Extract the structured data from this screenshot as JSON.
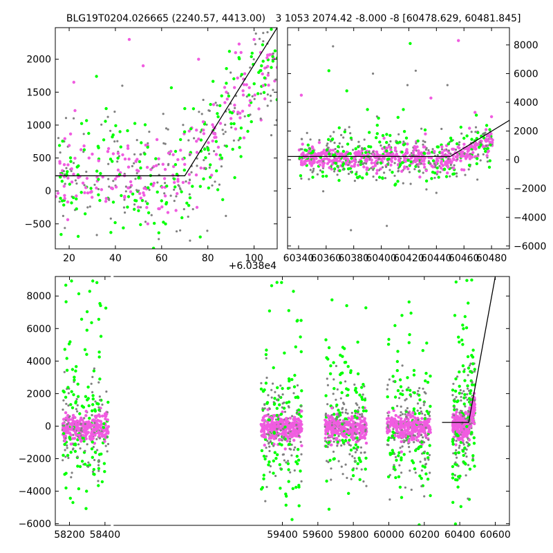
{
  "figure": {
    "title_left": "BLG19T0204.026665 (2240.57, 4413.00)",
    "title_right": "3 1053 2074.42 -8.000 -8 [60478.629, 60481.845]",
    "offset_text": "+6.038e4",
    "colors": {
      "green": "#00ff00",
      "gray": "#808080",
      "pink": "#f05ce0",
      "model": "#000000"
    }
  },
  "chart_data": [
    {
      "type": "scatter",
      "panel": "top-left",
      "xlim": [
        14,
        110
      ],
      "ylim": [
        -880,
        2480
      ],
      "xticks": [
        20,
        40,
        60,
        80,
        100
      ],
      "xtick_labels": [
        "20",
        "40",
        "60",
        "80",
        "100"
      ],
      "yticks": [
        -500,
        0,
        500,
        1000,
        1500,
        2000
      ],
      "ytick_labels": [
        "−500",
        "0",
        "500",
        "1000",
        "1500",
        "2000"
      ],
      "x_offset": 60380,
      "model_line": {
        "x": [
          14,
          70,
          110
        ],
        "y": [
          230,
          230,
          2480
        ]
      },
      "points": [
        {
          "x": 16,
          "y": 420,
          "c": "pink"
        },
        {
          "x": 18,
          "y": 250,
          "c": "gray"
        },
        {
          "x": 20,
          "y": 690,
          "c": "pink"
        },
        {
          "x": 22,
          "y": 1650,
          "c": "pink"
        },
        {
          "x": 24,
          "y": 380,
          "c": "green"
        },
        {
          "x": 26,
          "y": 120,
          "c": "pink"
        },
        {
          "x": 28,
          "y": -250,
          "c": "gray"
        },
        {
          "x": 30,
          "y": 560,
          "c": "pink"
        },
        {
          "x": 32,
          "y": 300,
          "c": "green"
        },
        {
          "x": 34,
          "y": 20,
          "c": "pink"
        },
        {
          "x": 36,
          "y": 1250,
          "c": "green"
        },
        {
          "x": 38,
          "y": -420,
          "c": "gray"
        },
        {
          "x": 40,
          "y": 180,
          "c": "pink"
        },
        {
          "x": 42,
          "y": 900,
          "c": "green"
        },
        {
          "x": 44,
          "y": -100,
          "c": "pink"
        },
        {
          "x": 46,
          "y": 2300,
          "c": "pink"
        },
        {
          "x": 48,
          "y": 420,
          "c": "gray"
        },
        {
          "x": 50,
          "y": -300,
          "c": "green"
        },
        {
          "x": 52,
          "y": 1900,
          "c": "pink"
        },
        {
          "x": 54,
          "y": -500,
          "c": "pink"
        },
        {
          "x": 56,
          "y": 350,
          "c": "gray"
        },
        {
          "x": 58,
          "y": 780,
          "c": "pink"
        },
        {
          "x": 60,
          "y": -150,
          "c": "green"
        },
        {
          "x": 62,
          "y": 950,
          "c": "gray"
        },
        {
          "x": 64,
          "y": 600,
          "c": "pink"
        },
        {
          "x": 66,
          "y": 400,
          "c": "green"
        },
        {
          "x": 68,
          "y": -600,
          "c": "gray"
        },
        {
          "x": 70,
          "y": 1250,
          "c": "green"
        },
        {
          "x": 72,
          "y": 250,
          "c": "pink"
        },
        {
          "x": 74,
          "y": 800,
          "c": "gray"
        },
        {
          "x": 76,
          "y": 2000,
          "c": "pink"
        },
        {
          "x": 78,
          "y": 1050,
          "c": "pink"
        },
        {
          "x": 80,
          "y": 650,
          "c": "green"
        },
        {
          "x": 82,
          "y": 900,
          "c": "pink"
        },
        {
          "x": 84,
          "y": 1300,
          "c": "gray"
        },
        {
          "x": 86,
          "y": 500,
          "c": "green"
        },
        {
          "x": 88,
          "y": 1500,
          "c": "pink"
        },
        {
          "x": 90,
          "y": 1100,
          "c": "pink"
        },
        {
          "x": 92,
          "y": 2100,
          "c": "pink"
        },
        {
          "x": 94,
          "y": 800,
          "c": "green"
        },
        {
          "x": 96,
          "y": 1700,
          "c": "gray"
        },
        {
          "x": 98,
          "y": 1300,
          "c": "pink"
        },
        {
          "x": 100,
          "y": 2300,
          "c": "pink"
        },
        {
          "x": 102,
          "y": 1800,
          "c": "green"
        },
        {
          "x": 104,
          "y": 1600,
          "c": "pink"
        }
      ]
    },
    {
      "type": "scatter",
      "panel": "top-right",
      "xlim": [
        60332,
        60493
      ],
      "ylim": [
        -6200,
        9200
      ],
      "xticks": [
        60340,
        60360,
        60380,
        60400,
        60420,
        60440,
        60460,
        60480
      ],
      "xtick_labels": [
        "60340",
        "60360",
        "60380",
        "60400",
        "60420",
        "60440",
        "60460",
        "60480"
      ],
      "yticks": [
        -6000,
        -4000,
        -2000,
        0,
        2000,
        4000,
        6000,
        8000
      ],
      "ytick_labels": [
        "−6000",
        "−4000",
        "−2000",
        "0",
        "2000",
        "4000",
        "6000",
        "8000"
      ],
      "model_line": {
        "x": [
          60332,
          60450,
          60493
        ],
        "y": [
          230,
          230,
          2750
        ]
      },
      "points": [
        {
          "x": 60342,
          "y": 4500,
          "c": "pink"
        },
        {
          "x": 60346,
          "y": 200,
          "c": "pink"
        },
        {
          "x": 60350,
          "y": 900,
          "c": "pink"
        },
        {
          "x": 60355,
          "y": 1200,
          "c": "pink"
        },
        {
          "x": 60358,
          "y": -100,
          "c": "gray"
        },
        {
          "x": 60362,
          "y": 6200,
          "c": "green"
        },
        {
          "x": 60365,
          "y": 7900,
          "c": "gray"
        },
        {
          "x": 60368,
          "y": 400,
          "c": "pink"
        },
        {
          "x": 60372,
          "y": -400,
          "c": "green"
        },
        {
          "x": 60375,
          "y": 4800,
          "c": "green"
        },
        {
          "x": 60378,
          "y": -4900,
          "c": "gray"
        },
        {
          "x": 60382,
          "y": 300,
          "c": "pink"
        },
        {
          "x": 60386,
          "y": 800,
          "c": "gray"
        },
        {
          "x": 60390,
          "y": 3500,
          "c": "green"
        },
        {
          "x": 60394,
          "y": 6000,
          "c": "gray"
        },
        {
          "x": 60398,
          "y": 2900,
          "c": "green"
        },
        {
          "x": 60402,
          "y": 1500,
          "c": "pink"
        },
        {
          "x": 60404,
          "y": -4600,
          "c": "gray"
        },
        {
          "x": 60408,
          "y": 300,
          "c": "pink"
        },
        {
          "x": 60412,
          "y": -1500,
          "c": "green"
        },
        {
          "x": 60416,
          "y": 3500,
          "c": "green"
        },
        {
          "x": 60419,
          "y": 5200,
          "c": "gray"
        },
        {
          "x": 60421,
          "y": 8100,
          "c": "green"
        },
        {
          "x": 60425,
          "y": 6200,
          "c": "gray"
        },
        {
          "x": 60428,
          "y": -1200,
          "c": "pink"
        },
        {
          "x": 60432,
          "y": 1800,
          "c": "pink"
        },
        {
          "x": 60436,
          "y": 4300,
          "c": "pink"
        },
        {
          "x": 60440,
          "y": -2300,
          "c": "gray"
        },
        {
          "x": 60444,
          "y": 900,
          "c": "pink"
        },
        {
          "x": 60448,
          "y": 5200,
          "c": "gray"
        },
        {
          "x": 60452,
          "y": -1000,
          "c": "green"
        },
        {
          "x": 60456,
          "y": 8300,
          "c": "pink"
        },
        {
          "x": 60460,
          "y": 1500,
          "c": "green"
        },
        {
          "x": 60464,
          "y": 2200,
          "c": "pink"
        },
        {
          "x": 60468,
          "y": 3300,
          "c": "pink"
        },
        {
          "x": 60472,
          "y": 1200,
          "c": "gray"
        },
        {
          "x": 60476,
          "y": 2100,
          "c": "pink"
        },
        {
          "x": 60480,
          "y": 3000,
          "c": "pink"
        }
      ]
    },
    {
      "type": "scatter",
      "panel": "bottom",
      "xlim": [
        58120,
        60680
      ],
      "ylim": [
        -6100,
        9200
      ],
      "x_break": [
        58425,
        59270
      ],
      "xticks": [
        58200,
        58400,
        59400,
        59600,
        59800,
        60000,
        60200,
        60400,
        60600
      ],
      "xtick_labels": [
        "58200",
        "58400",
        "59400",
        "59600",
        "59800",
        "60000",
        "60200",
        "60400",
        "60600"
      ],
      "yticks": [
        -6000,
        -4000,
        -2000,
        0,
        2000,
        4000,
        6000,
        8000
      ],
      "ytick_labels": [
        "−6000",
        "−4000",
        "−2000",
        "0",
        "2000",
        "4000",
        "6000",
        "8000"
      ],
      "model_line": {
        "x": [
          60300,
          60450,
          60600
        ],
        "y": [
          230,
          230,
          9200
        ]
      },
      "seasons": [
        {
          "x": [
            58160,
            58420
          ]
        },
        {
          "x": [
            59280,
            59510
          ]
        },
        {
          "x": [
            59640,
            59875
          ]
        },
        {
          "x": [
            59990,
            60235
          ]
        },
        {
          "x": [
            60360,
            60485
          ]
        }
      ]
    }
  ]
}
